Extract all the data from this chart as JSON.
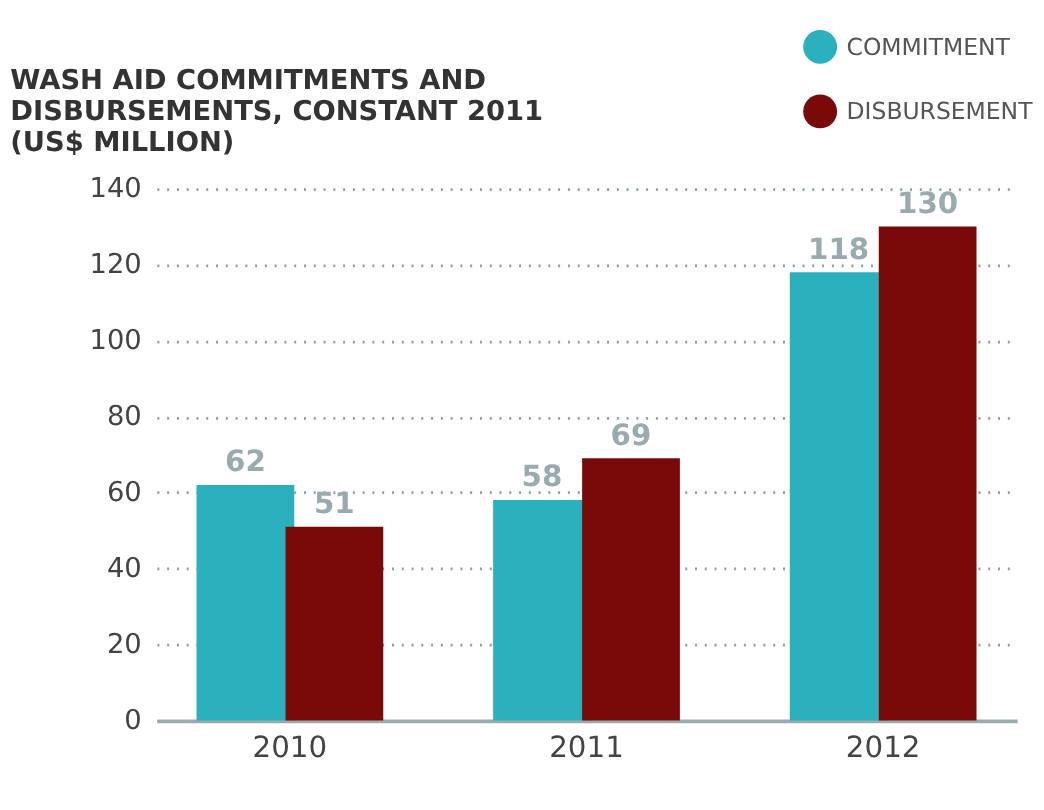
{
  "chart_data": {
    "type": "bar",
    "title": "WASH AID COMMITMENTS AND\nDISBURSEMENTS, CONSTANT 2011\n(US$ MILLION)",
    "categories": [
      "2010",
      "2011",
      "2012"
    ],
    "series": [
      {
        "name": "COMMITMENT",
        "color": "#2bb0be",
        "values": [
          62,
          58,
          118
        ]
      },
      {
        "name": "DISBURSEMENT",
        "color": "#7a0a0a",
        "values": [
          51,
          69,
          130
        ]
      }
    ],
    "ylim": [
      0,
      140
    ],
    "yticks": [
      0,
      20,
      40,
      60,
      80,
      100,
      120,
      140
    ],
    "grid": "y",
    "data_labels": true,
    "legend": "top right"
  }
}
